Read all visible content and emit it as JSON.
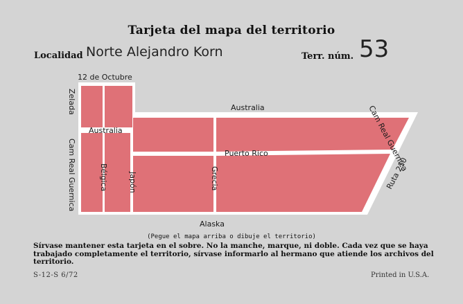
{
  "card": {
    "title": "Tarjeta del mapa del territorio",
    "locality_label": "Localidad",
    "locality_value": "Norte Alejandro Korn",
    "territory_label": "Terr. núm.",
    "territory_number": "53",
    "map_caption": "(Pegue el mapa arriba o dibuje el territorio)",
    "instructions": "Sírvase mantener esta tarjeta en el sobre. No la manche, marque, ni doble. Cada vez que se haya trabajado completamente el territorio, sírvase informarlo al hermano que atiende los archivos del territorio.",
    "form_code": "S-12-S      6/72",
    "printed_in": "Printed in U.S.A."
  },
  "map": {
    "fill_color": "#df7177",
    "street_color": "#ffffff",
    "streets": {
      "top_left": "12 de Octubre",
      "top": "Australia",
      "left_inner": "Australia",
      "middle": "Puerto Rico",
      "bottom": "Alaska",
      "left_vertical": "Zelada",
      "left_vertical_lower": "Cam Real Guernica",
      "right_diagonal": "Cam Real Guernica",
      "right_outer": "Ruta 210",
      "col_belgica": "Bélgica",
      "col_japon": "Japón",
      "col_grecia": "Grecia"
    }
  }
}
